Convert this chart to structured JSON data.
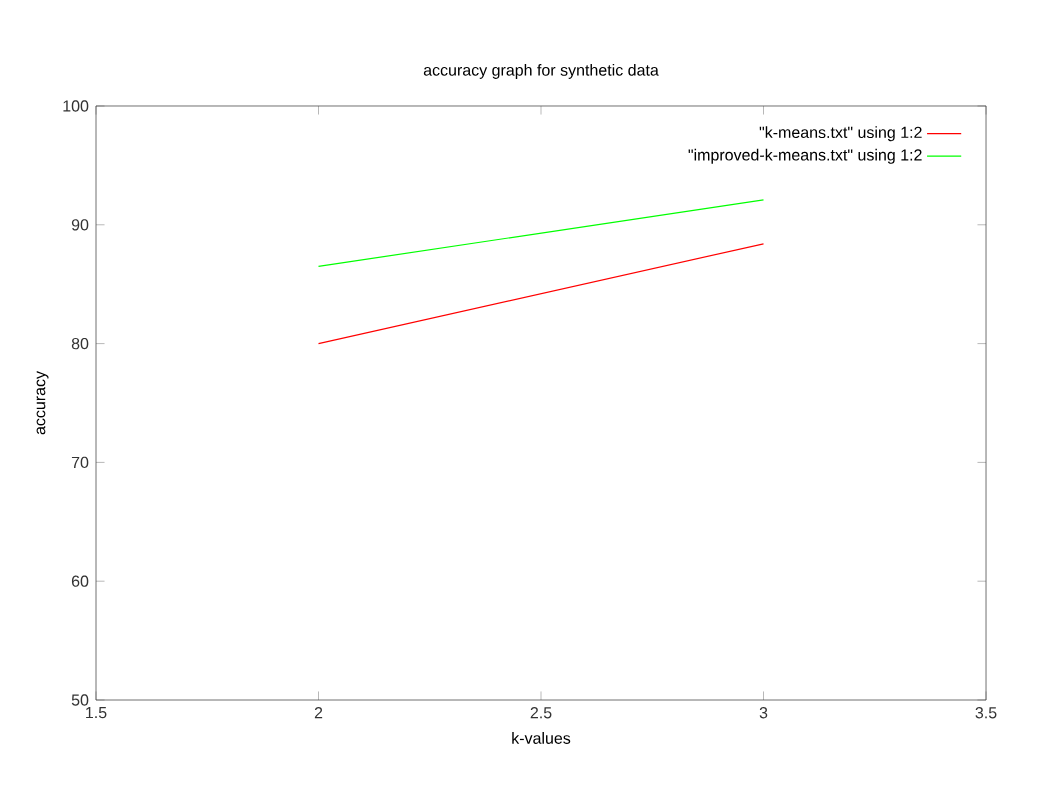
{
  "chart_data": {
    "type": "line",
    "title": "accuracy graph for synthetic data",
    "xlabel": "k-values",
    "ylabel": "accuracy",
    "x": [
      2,
      3
    ],
    "series": [
      {
        "name": "\"k-means.txt\" using 1:2",
        "color": "#ff0000",
        "values": [
          80,
          88.4
        ]
      },
      {
        "name": "\"improved-k-means.txt\" using 1:2",
        "color": "#00ff00",
        "values": [
          86.5,
          92.1
        ]
      }
    ],
    "xlim": [
      1.5,
      3.5
    ],
    "xticks": [
      1.5,
      2,
      2.5,
      3,
      3.5
    ],
    "ylim": [
      50,
      100
    ],
    "yticks": [
      50,
      60,
      70,
      80,
      90,
      100
    ],
    "legend": "top right",
    "grid": false,
    "marker": "none",
    "line_style": "solid"
  }
}
